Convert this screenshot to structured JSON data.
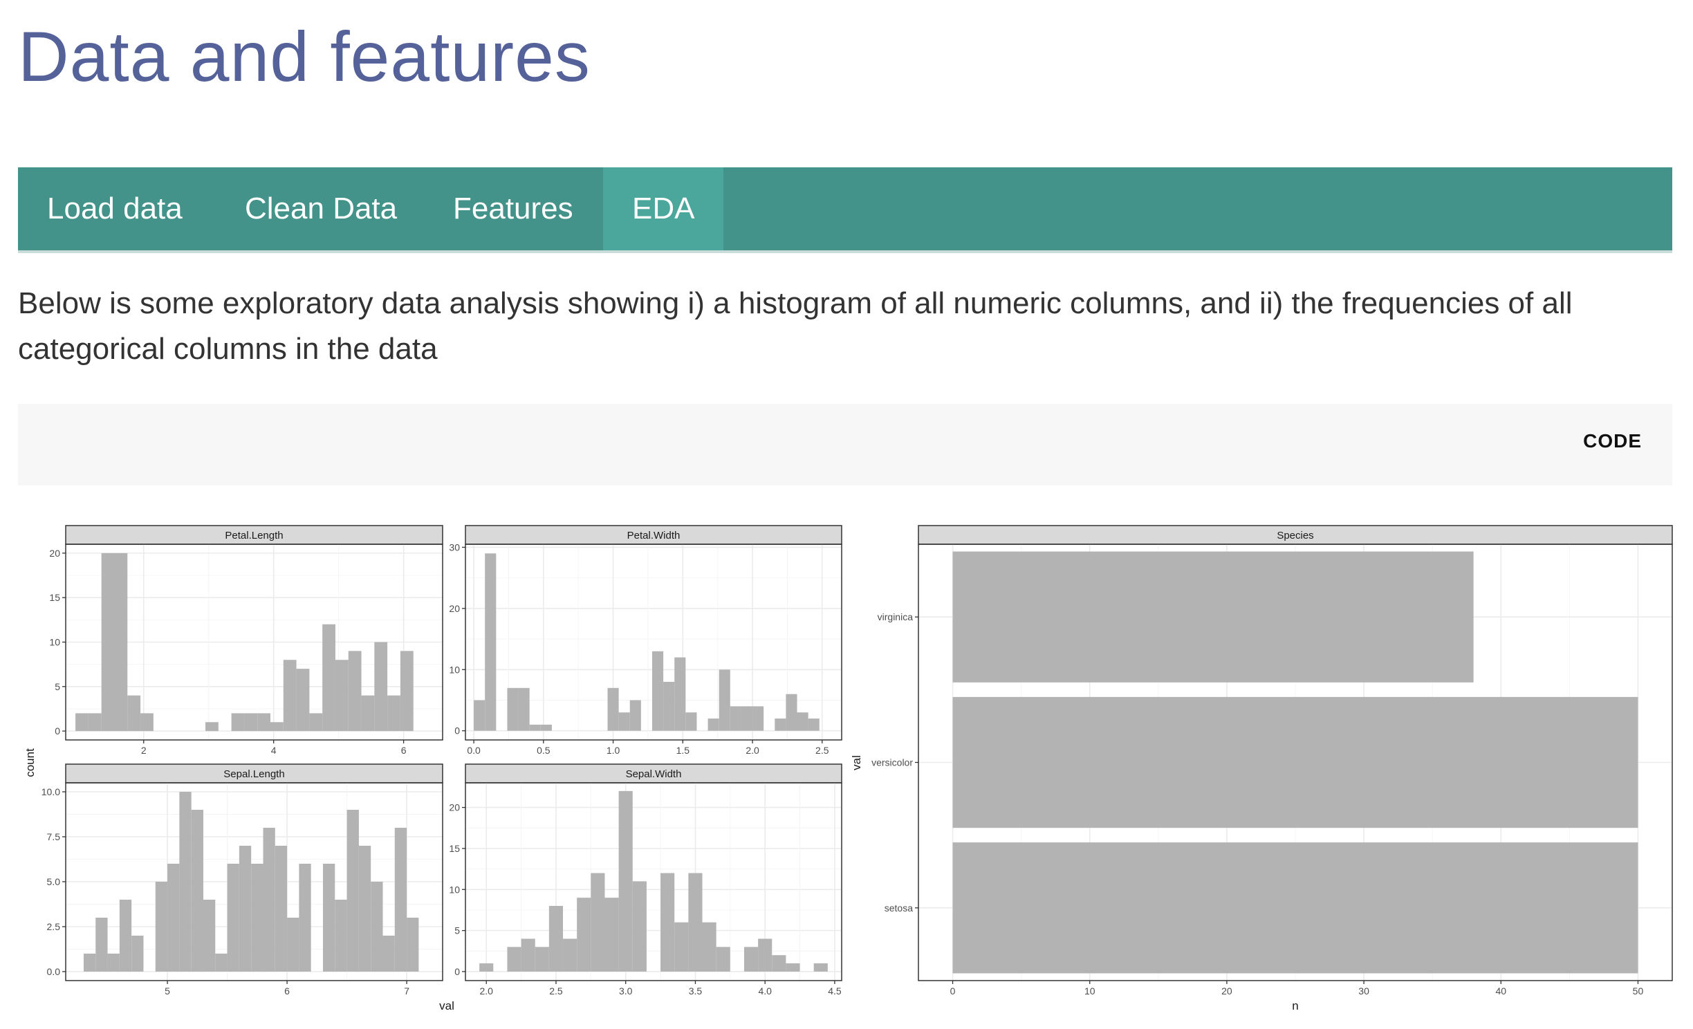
{
  "page": {
    "title": "Data and features",
    "intro": "Below is some exploratory data analysis showing i) a histogram of all numeric columns, and ii) the frequencies of all categorical columns in the data"
  },
  "nav": {
    "tabs": [
      {
        "label": "Load data",
        "active": false
      },
      {
        "label": "Clean Data",
        "active": false
      },
      {
        "label": "Features",
        "active": false
      },
      {
        "label": "EDA",
        "active": true
      }
    ],
    "colors": {
      "bar": "#43938a",
      "active": "#4ba69c",
      "title": "#55629a"
    }
  },
  "code_button": {
    "label": "CODE"
  },
  "chart_data": [
    {
      "type": "bar",
      "panel": "Petal.Length",
      "x": [
        1.05,
        1.25,
        1.45,
        1.65,
        1.85,
        2.05,
        2.25,
        2.45,
        2.65,
        2.85,
        3.05,
        3.25,
        3.45,
        3.65,
        3.85,
        4.05,
        4.25,
        4.45,
        4.65,
        4.85,
        5.05,
        5.25,
        5.45,
        5.65,
        5.85,
        6.05
      ],
      "values": [
        2,
        2,
        20,
        20,
        4,
        2,
        0,
        0,
        0,
        0,
        1,
        0,
        2,
        2,
        2,
        1,
        8,
        7,
        2,
        12,
        8,
        9,
        4,
        10,
        4,
        9
      ],
      "xticks": [
        2,
        4,
        6
      ],
      "xlim": [
        0.8,
        6.6
      ],
      "yticks": [
        0,
        5,
        10,
        15,
        20
      ],
      "ylim": [
        -1,
        21
      ],
      "xlabel": "val",
      "ylabel": "count"
    },
    {
      "type": "bar",
      "panel": "Petal.Width",
      "x": [
        0.04,
        0.12,
        0.2,
        0.28,
        0.36,
        0.44,
        0.52,
        0.6,
        0.68,
        0.76,
        0.84,
        0.92,
        1.0,
        1.08,
        1.16,
        1.24,
        1.32,
        1.4,
        1.48,
        1.56,
        1.64,
        1.72,
        1.8,
        1.88,
        1.96,
        2.04,
        2.12,
        2.2,
        2.28,
        2.36,
        2.44,
        2.52
      ],
      "values": [
        5,
        29,
        0,
        7,
        7,
        1,
        1,
        0,
        0,
        0,
        0,
        0,
        7,
        3,
        5,
        0,
        13,
        8,
        12,
        3,
        0,
        2,
        10,
        4,
        4,
        4,
        0,
        2,
        6,
        3,
        2,
        0
      ],
      "xticks": [
        0.0,
        0.5,
        1.0,
        1.5,
        2.0,
        2.5
      ],
      "xtick_labels": [
        "0.0",
        "0.5",
        "1.0",
        "1.5",
        "2.0",
        "2.5"
      ],
      "xlim": [
        -0.06,
        2.64
      ],
      "yticks": [
        0,
        10,
        20,
        30
      ],
      "ylim": [
        -1.5,
        30.5
      ]
    },
    {
      "type": "bar",
      "panel": "Sepal.Length",
      "x": [
        4.35,
        4.45,
        4.55,
        4.65,
        4.75,
        4.85,
        4.95,
        5.05,
        5.15,
        5.25,
        5.35,
        5.45,
        5.55,
        5.65,
        5.75,
        5.85,
        5.95,
        6.05,
        6.15,
        6.25,
        6.35,
        6.45,
        6.55,
        6.65,
        6.75,
        6.85,
        6.95,
        7.05
      ],
      "values": [
        1,
        3,
        1,
        4,
        2,
        0,
        5,
        6,
        10,
        9,
        4,
        1,
        6,
        7,
        6,
        8,
        7,
        3,
        6,
        0,
        6,
        4,
        9,
        7,
        5,
        2,
        8,
        3
      ],
      "xticks": [
        5,
        6,
        7
      ],
      "xlim": [
        4.15,
        7.3
      ],
      "yticks": [
        0,
        2.5,
        5,
        7.5,
        10
      ],
      "ytick_labels": [
        "0.0",
        "2.5",
        "5.0",
        "7.5",
        "10.0"
      ],
      "ylim": [
        -0.5,
        10.5
      ]
    },
    {
      "type": "bar",
      "panel": "Sepal.Width",
      "x": [
        2.0,
        2.1,
        2.2,
        2.3,
        2.4,
        2.5,
        2.6,
        2.7,
        2.8,
        2.9,
        3.0,
        3.1,
        3.2,
        3.3,
        3.4,
        3.5,
        3.6,
        3.7,
        3.8,
        3.9,
        4.0,
        4.1,
        4.2,
        4.3,
        4.4
      ],
      "values": [
        1,
        0,
        3,
        4,
        3,
        8,
        4,
        9,
        12,
        9,
        22,
        11,
        0,
        12,
        6,
        12,
        6,
        3,
        0,
        3,
        4,
        2,
        1,
        0,
        1
      ],
      "xticks": [
        2.0,
        2.5,
        3.0,
        3.5,
        4.0,
        4.5
      ],
      "xtick_labels": [
        "2.0",
        "2.5",
        "3.0",
        "3.5",
        "4.0",
        "4.5"
      ],
      "xlim": [
        1.85,
        4.55
      ],
      "yticks": [
        0,
        5,
        10,
        15,
        20
      ],
      "ylim": [
        -1.1,
        23
      ]
    },
    {
      "type": "bar",
      "panel": "Species",
      "orientation": "horizontal",
      "categories": [
        "virginica",
        "versicolor",
        "setosa"
      ],
      "values": [
        38,
        50,
        50
      ],
      "xticks": [
        0,
        10,
        20,
        30,
        40,
        50
      ],
      "xlim": [
        -2.5,
        52.5
      ],
      "xlabel": "n",
      "ylabel": "val"
    }
  ]
}
